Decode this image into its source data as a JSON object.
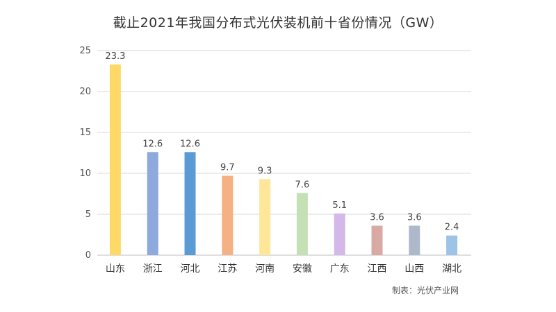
{
  "chart_data": {
    "type": "bar",
    "title": "截止2021年我国分布式光伏装机前十省份情况（GW）",
    "categories": [
      "山东",
      "浙江",
      "河北",
      "江苏",
      "河南",
      "安徽",
      "广东",
      "江西",
      "山西",
      "湖北"
    ],
    "values": [
      23.3,
      12.6,
      12.6,
      9.7,
      9.3,
      7.6,
      5.1,
      3.6,
      3.6,
      2.4
    ],
    "value_labels": [
      "23.3",
      "12.6",
      "12.6",
      "9.7",
      "9.3",
      "7.6",
      "5.1",
      "3.6",
      "3.6",
      "2.4"
    ],
    "bar_colors": [
      "#FFD966",
      "#8EA9DB",
      "#5B9BD5",
      "#F4B183",
      "#FFE699",
      "#C5E0B4",
      "#D5B8EA",
      "#D9A9A4",
      "#ADB9CA",
      "#9DC3E6"
    ],
    "ylim": [
      0,
      25
    ],
    "yticks": [
      0,
      5,
      10,
      15,
      20,
      25
    ],
    "ytick_labels": [
      "0",
      "5",
      "10",
      "15",
      "20",
      "25"
    ],
    "grid": true,
    "xlabel": "",
    "ylabel": ""
  },
  "source_note": "制表：光伏产业网"
}
